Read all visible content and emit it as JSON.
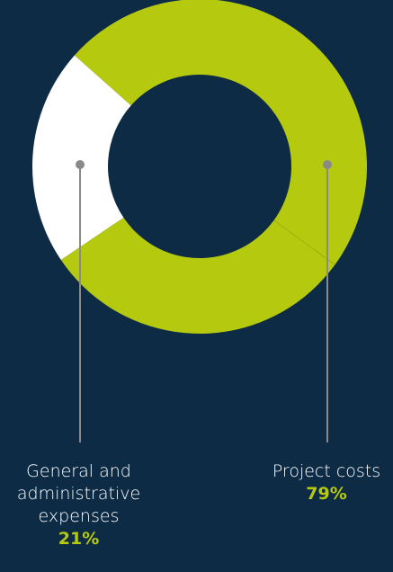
{
  "chart_data": {
    "type": "pie",
    "donut": true,
    "slices": [
      {
        "label": "General and administrative expenses",
        "label_lines": [
          "General and",
          "administrative",
          "expenses"
        ],
        "value": 21,
        "display": "21%",
        "color": "#ffffff"
      },
      {
        "label": "Project costs",
        "label_lines": [
          "Project costs"
        ],
        "value": 79,
        "display": "79%",
        "color": "#b5c90f"
      }
    ]
  },
  "colors": {
    "background": "#0d2b45",
    "accent": "#b5c90f",
    "white": "#ffffff",
    "leader": "#8a8a8a"
  }
}
